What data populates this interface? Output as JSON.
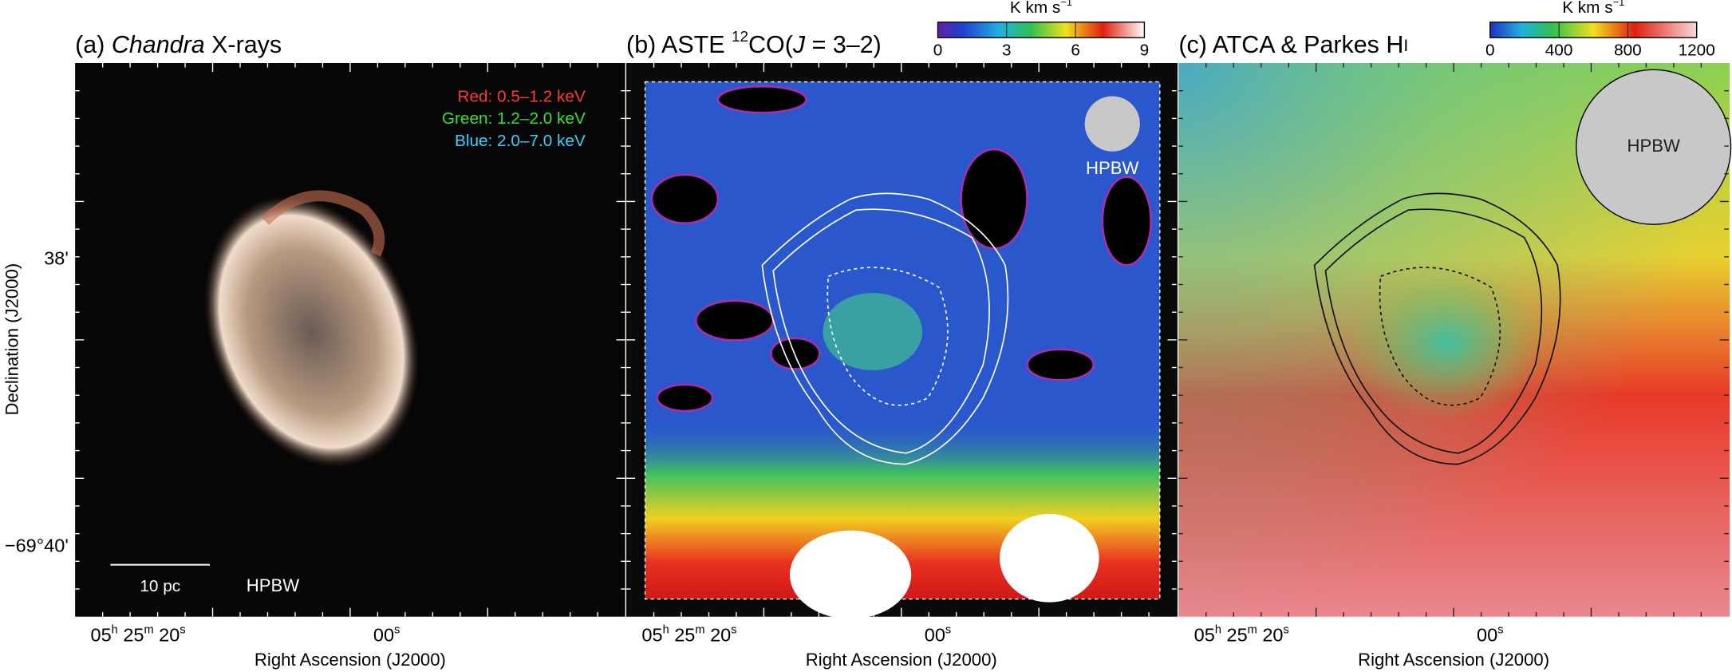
{
  "panels": [
    {
      "title": [
        {
          "text": "(a) "
        },
        {
          "text": "Chandra",
          "style": "italic"
        },
        {
          "text": " X-rays"
        }
      ],
      "legend": [
        {
          "text": "Red: 0.5–1.2 keV",
          "color": "#ff3b30"
        },
        {
          "text": "Green: 1.2–2.0 keV",
          "color": "#35e035"
        },
        {
          "text": "Blue: 2.0–7.0 keV",
          "color": "#35d2ff"
        }
      ],
      "scale_bar": "10 pc",
      "beam": "HPBW"
    },
    {
      "title": [
        {
          "text": "(b) ASTE "
        },
        {
          "text": "12",
          "style": "sup"
        },
        {
          "text": "CO("
        },
        {
          "text": "J",
          "style": "italic"
        },
        {
          "text": " = 3–2)"
        }
      ],
      "colorbar": {
        "label": [
          {
            "text": "K km s"
          },
          {
            "text": "−1",
            "style": "sup"
          }
        ],
        "lim": [
          0,
          9
        ],
        "ticks": [
          0,
          3,
          6,
          9
        ]
      },
      "beam": "HPBW"
    },
    {
      "title": [
        {
          "text": "(c) ATCA & Parkes H"
        },
        {
          "text": "I",
          "style": "small"
        }
      ],
      "colorbar": {
        "label": [
          {
            "text": "K km s"
          },
          {
            "text": "−1",
            "style": "sup"
          }
        ],
        "lim": [
          0,
          1200
        ],
        "ticks": [
          0,
          400,
          800,
          1200
        ]
      },
      "beam": "HPBW"
    }
  ],
  "y_ticks": [
    "38'",
    "−69°40'"
  ],
  "y_title": "Declination (J2000)",
  "x_ticks": [
    [
      {
        "text": "05"
      },
      {
        "text": "h",
        "style": "sup"
      },
      {
        "text": " 25"
      },
      {
        "text": "m",
        "style": "sup"
      },
      {
        "text": " 20"
      },
      {
        "text": "s",
        "style": "sup"
      }
    ],
    [
      {
        "text": "00"
      },
      {
        "text": "s",
        "style": "sup"
      }
    ]
  ],
  "x_title": "Right Ascension (J2000)"
}
